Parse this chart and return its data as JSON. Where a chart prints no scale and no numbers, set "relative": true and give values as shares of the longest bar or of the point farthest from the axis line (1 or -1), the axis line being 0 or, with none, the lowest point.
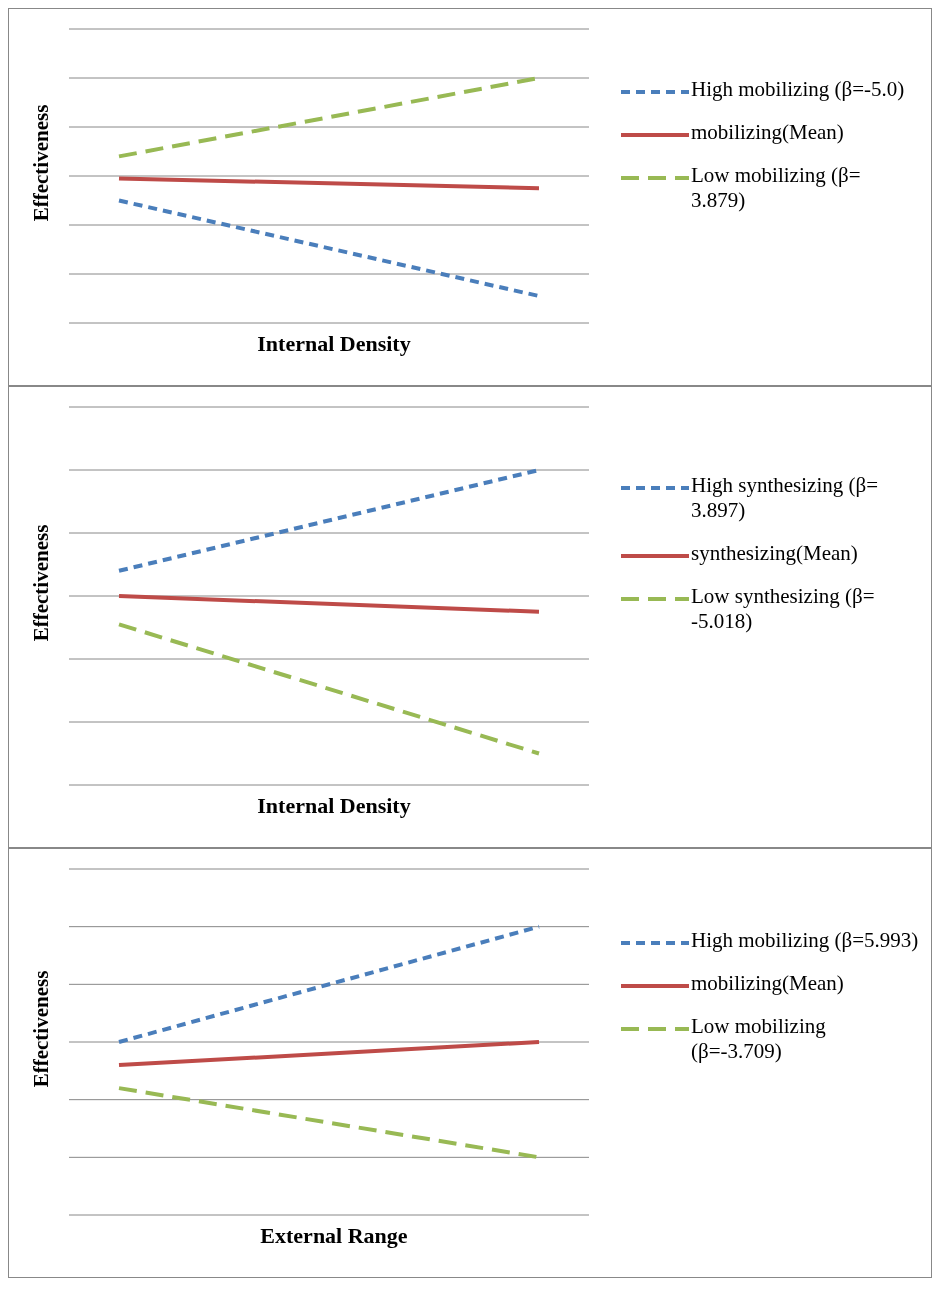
{
  "chart_data": [
    {
      "type": "line",
      "relative": true,
      "xlabel": "Internal Density",
      "ylabel": "Effectiveness",
      "categories": [
        null,
        null
      ],
      "grid": "y",
      "legend": "right",
      "marker": "none",
      "series": [
        {
          "name": "High mobilizing (β=-5.0)",
          "color": "#4a7ebb",
          "line_style": "dashed",
          "values": [
            0.5,
            0.11
          ]
        },
        {
          "name": "mobilizing(Mean)",
          "color": "#be4b48",
          "line_style": "solid",
          "values": [
            0.59,
            0.55
          ]
        },
        {
          "name": "Low mobilizing (β= 3.879)",
          "color": "#98b954",
          "line_style": "dashed",
          "values": [
            0.68,
            1.0
          ]
        }
      ]
    },
    {
      "type": "line",
      "relative": true,
      "xlabel": "Internal Density",
      "ylabel": "Effectiveness",
      "categories": [
        null,
        null
      ],
      "grid": "y",
      "legend": "right",
      "marker": "none",
      "series": [
        {
          "name": "High synthesizing (β= 3.897)",
          "color": "#4a7ebb",
          "line_style": "dashed",
          "values": [
            0.68,
            1.0
          ]
        },
        {
          "name": "synthesizing(Mean)",
          "color": "#be4b48",
          "line_style": "solid",
          "values": [
            0.6,
            0.55
          ]
        },
        {
          "name": "Low synthesizing (β= -5.018)",
          "color": "#98b954",
          "line_style": "dashed",
          "values": [
            0.51,
            0.1
          ]
        }
      ]
    },
    {
      "type": "line",
      "relative": true,
      "xlabel": "External Range",
      "ylabel": "Effectiveness",
      "categories": [
        null,
        null
      ],
      "grid": "y",
      "legend": "right",
      "marker": "none",
      "series": [
        {
          "name": "High mobilizing (β=5.993)",
          "color": "#4a7ebb",
          "line_style": "dashed",
          "values": [
            0.6,
            1.0
          ]
        },
        {
          "name": "mobilizing(Mean)",
          "color": "#be4b48",
          "line_style": "solid",
          "values": [
            0.52,
            0.6
          ]
        },
        {
          "name": "Low mobilizing (β=-3.709)",
          "color": "#98b954",
          "line_style": "dashed",
          "values": [
            0.44,
            0.2
          ]
        }
      ]
    }
  ]
}
